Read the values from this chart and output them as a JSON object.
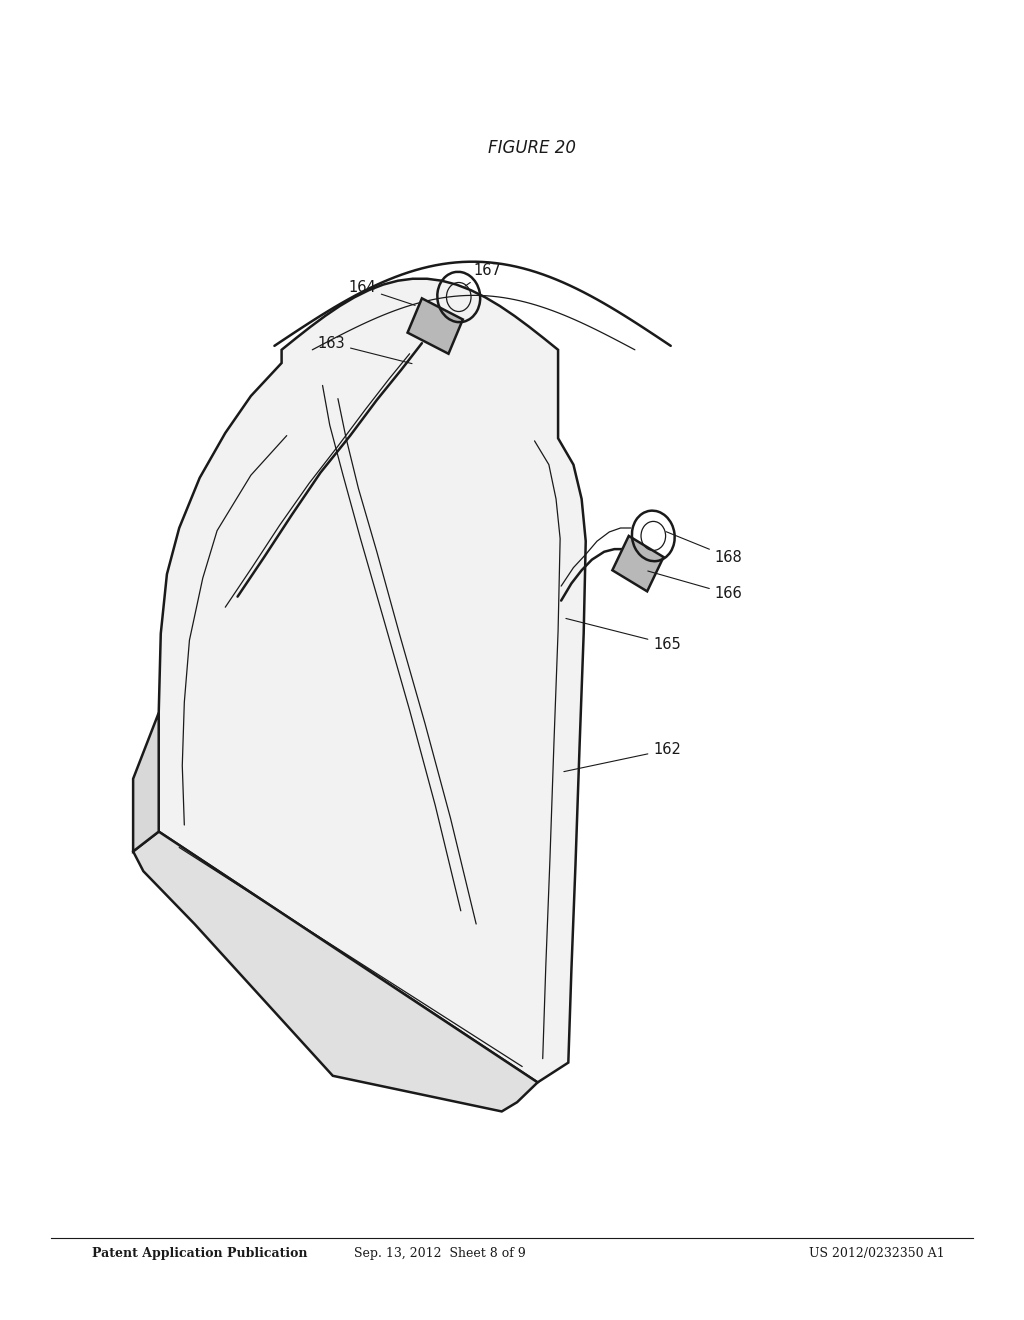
{
  "background_color": "#ffffff",
  "line_color": "#1a1a1a",
  "header_left": "Patent Application Publication",
  "header_center": "Sep. 13, 2012  Sheet 8 of 9",
  "header_right": "US 2012/0232350 A1",
  "figure_label": "FIGURE 20"
}
